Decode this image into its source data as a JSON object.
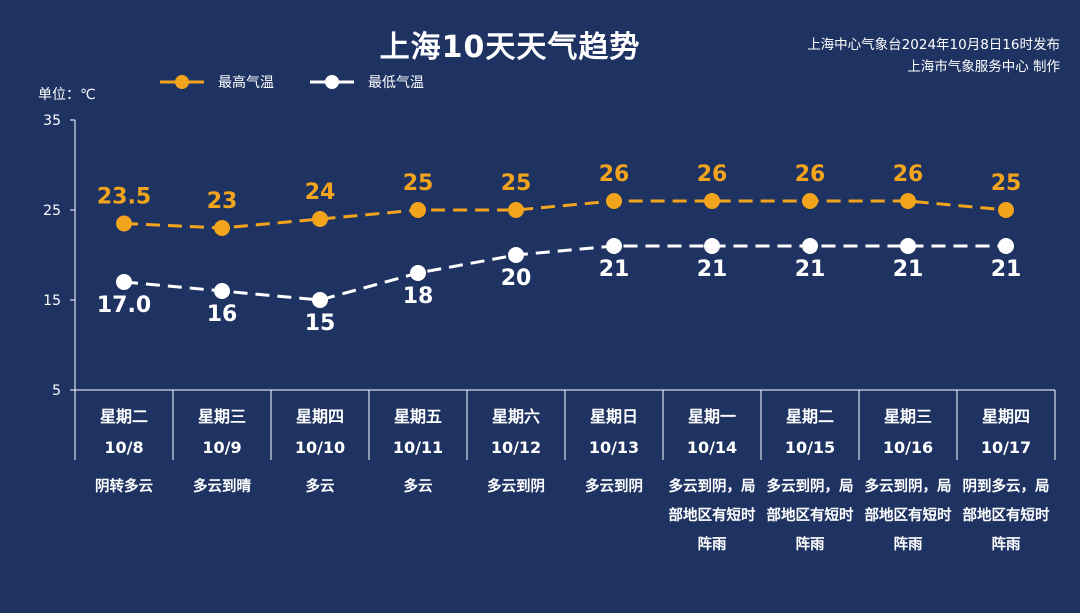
{
  "title": "上海10天天气趋势",
  "source": [
    "上海中心气象台2024年10月8日16时发布",
    "上海市气象服务中心 制作"
  ],
  "unit_label": "单位：℃",
  "colors": {
    "background": "#1f3363",
    "max": "#f2a41c",
    "min": "#ffffff"
  },
  "legend": {
    "max_label": "最高气温",
    "min_label": "最低气温"
  },
  "chart_data": {
    "type": "line",
    "ylim": [
      5,
      35
    ],
    "yticks": [
      "35",
      "25",
      "15",
      "5"
    ],
    "categories": [
      "10/8",
      "10/9",
      "10/10",
      "10/11",
      "10/12",
      "10/13",
      "10/14",
      "10/15",
      "10/16",
      "10/17"
    ],
    "series": [
      {
        "name": "最高气温",
        "values": [
          23.5,
          23,
          24,
          25,
          25,
          26,
          26,
          26,
          26,
          25
        ],
        "labels": [
          "23.5",
          "23",
          "24",
          "25",
          "25",
          "26",
          "26",
          "26",
          "26",
          "25"
        ]
      },
      {
        "name": "最低气温",
        "values": [
          17.0,
          16,
          15,
          18,
          20,
          21,
          21,
          21,
          21,
          21
        ],
        "labels": [
          "17.0",
          "16",
          "15",
          "18",
          "20",
          "21",
          "21",
          "21",
          "21",
          "21"
        ]
      }
    ]
  },
  "days": [
    {
      "weekday": "星期二",
      "date": "10/8",
      "weather": "阴转多云"
    },
    {
      "weekday": "星期三",
      "date": "10/9",
      "weather": "多云到晴"
    },
    {
      "weekday": "星期四",
      "date": "10/10",
      "weather": "多云"
    },
    {
      "weekday": "星期五",
      "date": "10/11",
      "weather": "多云"
    },
    {
      "weekday": "星期六",
      "date": "10/12",
      "weather": "多云到阴"
    },
    {
      "weekday": "星期日",
      "date": "10/13",
      "weather": "多云到阴"
    },
    {
      "weekday": "星期一",
      "date": "10/14",
      "weather": "多云到阴，局部地区有短时阵雨"
    },
    {
      "weekday": "星期二",
      "date": "10/15",
      "weather": "多云到阴，局部地区有短时阵雨"
    },
    {
      "weekday": "星期三",
      "date": "10/16",
      "weather": "多云到阴，局部地区有短时阵雨"
    },
    {
      "weekday": "星期四",
      "date": "10/17",
      "weather": "阴到多云，局部地区有短时阵雨"
    }
  ]
}
